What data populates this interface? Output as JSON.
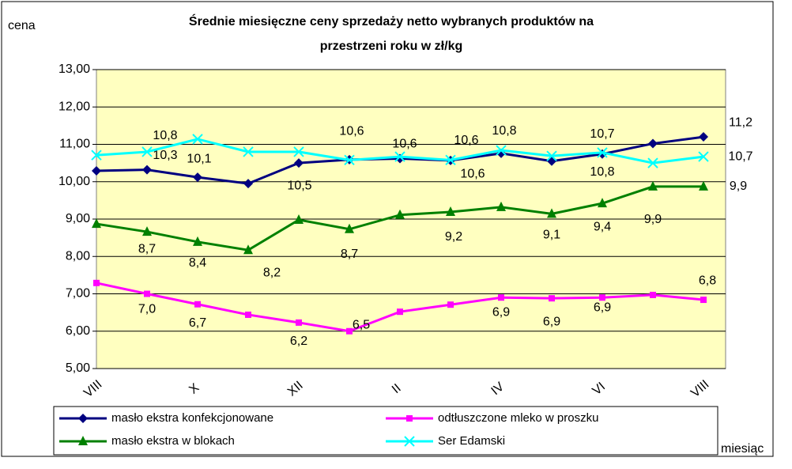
{
  "chart_data": {
    "type": "line",
    "title": "Średnie miesięczne ceny sprzedaży netto wybranych produktów na",
    "subtitle": "przestrzeni roku w zł/kg",
    "y_label": "cena",
    "x_label": "miesiąc",
    "categories": [
      "VIII",
      null,
      "X",
      null,
      "XII",
      null,
      "II",
      null,
      "IV",
      null,
      "VI",
      null,
      "VIII"
    ],
    "ylim": [
      5,
      13
    ],
    "yticks": [
      {
        "value": 5,
        "label": "5,00"
      },
      {
        "value": 6,
        "label": "6,00"
      },
      {
        "value": 7,
        "label": "7,00"
      },
      {
        "value": 8,
        "label": "8,00"
      },
      {
        "value": 9,
        "label": "9,00"
      },
      {
        "value": 10,
        "label": "10,00"
      },
      {
        "value": 11,
        "label": "11,00"
      },
      {
        "value": 12,
        "label": "12,00"
      },
      {
        "value": 13,
        "label": "13,00"
      }
    ],
    "grid": true,
    "plot_background": "#ffffc0",
    "series": [
      {
        "name": "masło ekstra konfekcjonowane",
        "color": "#000080",
        "marker": "diamond",
        "values": [
          10.29,
          10.32,
          10.12,
          9.95,
          10.5,
          10.59,
          10.62,
          10.57,
          10.76,
          10.55,
          10.74,
          11.02,
          11.2
        ],
        "value_labels": [
          null,
          "10,3",
          "10,1",
          null,
          "10,5",
          null,
          "10,6",
          "10,6",
          "10,8",
          null,
          "10,7",
          null,
          "11,2"
        ]
      },
      {
        "name": "odtłuszczone mleko w proszku",
        "color": "#ff00ff",
        "marker": "square",
        "values": [
          7.29,
          7.0,
          6.72,
          6.44,
          6.23,
          6.0,
          6.52,
          6.71,
          6.9,
          6.88,
          6.9,
          6.97,
          6.84
        ],
        "value_labels": [
          null,
          "7,0",
          "6,7",
          null,
          "6,2",
          null,
          "6,5",
          null,
          "6,9",
          "6,9",
          "6,9",
          null,
          "6,8"
        ]
      },
      {
        "name": "masło ekstra w blokach",
        "color": "#008000",
        "marker": "triangle",
        "values": [
          8.87,
          8.66,
          8.39,
          8.17,
          8.98,
          8.73,
          9.11,
          9.19,
          9.32,
          9.14,
          9.42,
          9.87,
          9.87
        ],
        "value_labels": [
          null,
          "8,7",
          "8,4",
          "8,2",
          null,
          "8,7",
          null,
          "9,2",
          null,
          "9,1",
          "9,4",
          "9,9",
          "9,9"
        ]
      },
      {
        "name": "Ser Edamski",
        "color": "#00ffff",
        "marker": "x",
        "values": [
          10.71,
          10.8,
          11.14,
          10.8,
          10.8,
          10.58,
          10.67,
          10.58,
          10.84,
          10.69,
          10.78,
          10.5,
          10.67
        ],
        "value_labels": [
          null,
          "10,8",
          null,
          null,
          null,
          "10,6",
          null,
          "10,6",
          null,
          null,
          "10,8",
          null,
          "10,7"
        ]
      }
    ]
  }
}
